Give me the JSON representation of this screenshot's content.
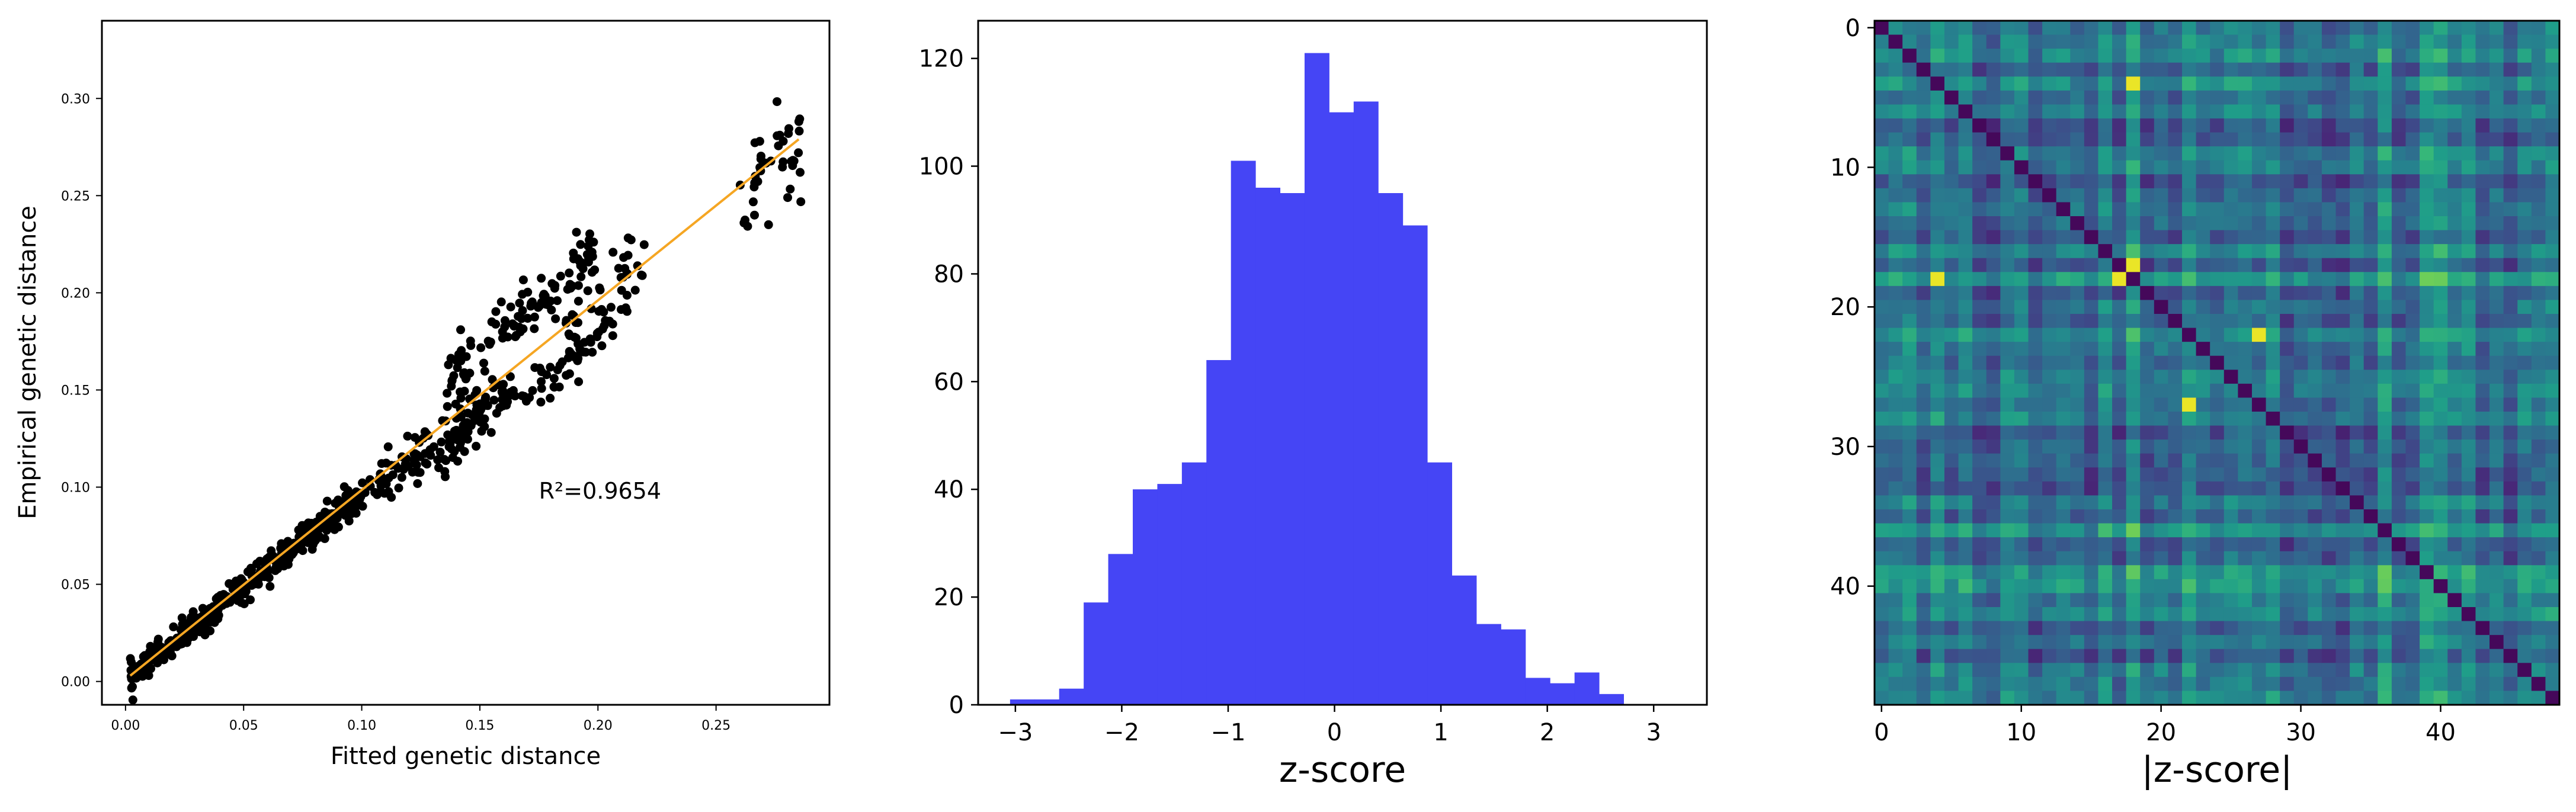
{
  "chart_data": [
    {
      "type": "scatter",
      "xlabel": "Fitted genetic distance",
      "ylabel": "Empirical genetic distance",
      "xlim": [
        -0.01,
        0.298
      ],
      "ylim": [
        -0.012,
        0.34
      ],
      "xticks": [
        0.0,
        0.05,
        0.1,
        0.15,
        0.2,
        0.25
      ],
      "xtick_labels": [
        "0.00",
        "0.05",
        "0.10",
        "0.15",
        "0.20",
        "0.25"
      ],
      "yticks": [
        0.0,
        0.05,
        0.1,
        0.15,
        0.2,
        0.25,
        0.3
      ],
      "ytick_labels": [
        "0.00",
        "0.05",
        "0.10",
        "0.15",
        "0.20",
        "0.25",
        "0.30"
      ],
      "annotation": "R²=0.9654",
      "fit_line": {
        "x": [
          0.002,
          0.285
        ],
        "y": [
          0.003,
          0.279
        ],
        "color": "#f5a623"
      },
      "point_color": "#000000",
      "point_clusters": [
        {
          "x_range": [
            0.002,
            0.1
          ],
          "slope": 0.97,
          "spread": 0.006,
          "count": 420
        },
        {
          "x_range": [
            0.1,
            0.16
          ],
          "slope": 0.93,
          "spread": 0.012,
          "count": 120
        },
        {
          "x_range": [
            0.135,
            0.2
          ],
          "slope": 1.12,
          "spread": 0.012,
          "count": 110
        },
        {
          "x_range": [
            0.135,
            0.21
          ],
          "slope": 0.88,
          "spread": 0.01,
          "count": 90
        },
        {
          "x_range": [
            0.185,
            0.22
          ],
          "slope": 0.98,
          "spread": 0.014,
          "count": 40
        },
        {
          "x_range": [
            0.26,
            0.286
          ],
          "slope": 0.96,
          "spread": 0.022,
          "count": 40
        }
      ],
      "grid": false
    },
    {
      "type": "bar",
      "xlabel": "z-score",
      "ylabel": "",
      "bin_width": 0.2307,
      "bin_start": -3.05,
      "values": [
        1,
        1,
        3,
        19,
        28,
        40,
        41,
        45,
        64,
        101,
        96,
        95,
        121,
        110,
        112,
        95,
        89,
        45,
        24,
        15,
        14,
        5,
        4,
        6,
        2
      ],
      "xlim": [
        -3.35,
        3.5
      ],
      "ylim": [
        0,
        127
      ],
      "xticks": [
        -3,
        -2,
        -1,
        0,
        1,
        2,
        3
      ],
      "xtick_labels": [
        "−3",
        "−2",
        "−1",
        "0",
        "1",
        "2",
        "3"
      ],
      "yticks": [
        0,
        20,
        40,
        60,
        80,
        100,
        120
      ],
      "ytick_labels": [
        "0",
        "20",
        "40",
        "60",
        "80",
        "100",
        "120"
      ],
      "bar_color": "#4545f5",
      "grid": false
    },
    {
      "type": "heatmap",
      "xlabel": "|z-score|",
      "size": 49,
      "colormap": "viridis",
      "xticks": [
        0,
        10,
        20,
        30,
        40
      ],
      "xtick_labels": [
        "0",
        "10",
        "20",
        "30",
        "40"
      ],
      "yticks": [
        0,
        10,
        20,
        30,
        40
      ],
      "ytick_labels": [
        "0",
        "10",
        "20",
        "30",
        "40"
      ],
      "bright_rows": [
        18,
        36,
        39,
        40
      ],
      "bright_cols": [
        18,
        36,
        39,
        40
      ],
      "highlight_cells": [
        [
          17,
          18
        ],
        [
          18,
          17
        ],
        [
          18,
          18
        ],
        [
          22,
          27
        ],
        [
          27,
          22
        ],
        [
          18,
          4
        ],
        [
          4,
          18
        ]
      ]
    }
  ]
}
